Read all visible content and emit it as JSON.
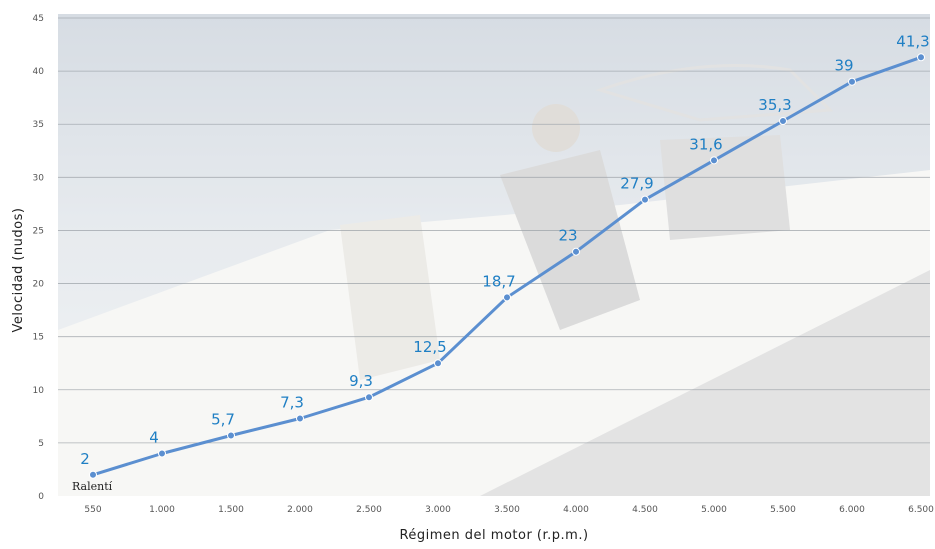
{
  "chart_data": {
    "type": "line",
    "xlabel": "Régimen del motor (r.p.m.)",
    "ylabel": "Velocidad (nudos)",
    "categories": [
      "550",
      "1.000",
      "1.500",
      "2.000",
      "2.500",
      "3.000",
      "3.500",
      "4.000",
      "4.500",
      "5.000",
      "5.500",
      "6.000",
      "6.500"
    ],
    "series": [
      {
        "values": [
          2,
          4,
          5.7,
          7.3,
          9.3,
          12.5,
          18.7,
          23,
          27.9,
          31.6,
          35.3,
          39,
          41.3
        ],
        "labels": [
          "2",
          "4",
          "5,7",
          "7,3",
          "9,3",
          "12,5",
          "18,7",
          "23",
          "27,9",
          "31,6",
          "35,3",
          "39",
          "41,3"
        ],
        "color": "#5b8fd0"
      }
    ],
    "ylim": [
      0,
      45
    ],
    "yticks": [
      0,
      5,
      10,
      15,
      20,
      25,
      30,
      35,
      40,
      45
    ],
    "grid": true,
    "annotation": "Ralentí",
    "label_color": "#1f7fc4",
    "background_photo": "boat-driver-on-sea"
  }
}
